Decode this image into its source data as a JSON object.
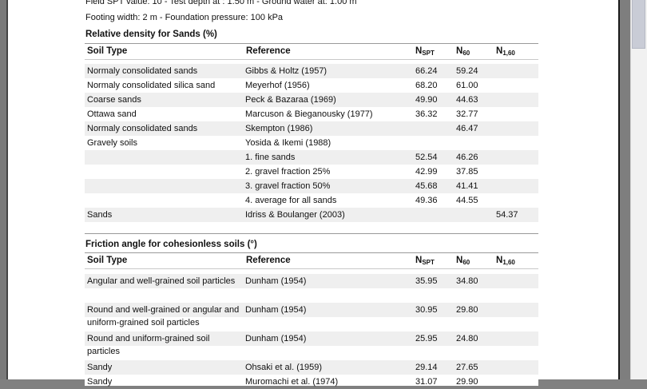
{
  "info": {
    "line1": "Field SPT value: 10 - Test depth at : 1.50 m - Ground water at: 1.00 m",
    "line2": "Footing width: 2 m - Foundation pressure: 100 kPa"
  },
  "headers": {
    "soil": "Soil Type",
    "ref": "Reference",
    "n1": {
      "b": "N",
      "s": "SPT"
    },
    "n2": {
      "b": "N",
      "s": "60"
    },
    "n3": {
      "b": "N",
      "s": "1,60"
    }
  },
  "table1": {
    "title": "Relative density for Sands (%)",
    "rows": [
      {
        "soil": "Normaly consolidated sands",
        "ref": "Gibbs & Holtz (1957)",
        "nspt": "66.24",
        "n60": "59.24",
        "n160": ""
      },
      {
        "soil": "Normaly consolidated silica sand",
        "ref": "Meyerhof (1956)",
        "nspt": "68.20",
        "n60": "61.00",
        "n160": ""
      },
      {
        "soil": "Coarse sands",
        "ref": "Peck & Bazaraa (1969)",
        "nspt": "49.90",
        "n60": "44.63",
        "n160": ""
      },
      {
        "soil": "Ottawa sand",
        "ref": "Marcuson & Bieganousky (1977)",
        "nspt": "36.32",
        "n60": "32.77",
        "n160": ""
      },
      {
        "soil": "Normaly consolidated sands",
        "ref": "Skempton (1986)",
        "nspt": "",
        "n60": "46.47",
        "n160": ""
      },
      {
        "soil": "Gravely soils",
        "ref": "Yosida & Ikemi (1988)",
        "nspt": "",
        "n60": "",
        "n160": ""
      },
      {
        "soil": "",
        "ref": " 1. fine sands",
        "nspt": "52.54",
        "n60": "46.26",
        "n160": ""
      },
      {
        "soil": "",
        "ref": " 2. gravel fraction 25%",
        "nspt": "42.99",
        "n60": "37.85",
        "n160": ""
      },
      {
        "soil": "",
        "ref": " 3. gravel fraction 50%",
        "nspt": "45.68",
        "n60": "41.41",
        "n160": ""
      },
      {
        "soil": "",
        "ref": " 4. average for all sands",
        "nspt": "49.36",
        "n60": "44.55",
        "n160": ""
      },
      {
        "soil": "Sands",
        "ref": "Idriss & Boulanger (2003)",
        "nspt": "",
        "n60": "",
        "n160": "54.37"
      }
    ]
  },
  "table2": {
    "title": "Friction angle for cohesionless soils (°)",
    "rows": [
      {
        "soil": "Angular and well-grained soil particles",
        "ref": "Dunham (1954)",
        "nspt": "35.95",
        "n60": "34.80",
        "n160": ""
      },
      {
        "soil": "Round and well-grained or angular and uniform-grained soil particles",
        "ref": "Dunham (1954)",
        "nspt": "30.95",
        "n60": "29.80",
        "n160": ""
      },
      {
        "soil": "Round and uniform-grained soil particles",
        "ref": "Dunham (1954)",
        "nspt": "25.95",
        "n60": "24.80",
        "n160": ""
      },
      {
        "soil": "Sandy",
        "ref": "Ohsaki et al. (1959)",
        "nspt": "29.14",
        "n60": "27.65",
        "n160": ""
      },
      {
        "soil": "Sandy",
        "ref": "Muromachi et al. (1974)",
        "nspt": "31.07",
        "n60": "29.90",
        "n160": ""
      }
    ]
  }
}
